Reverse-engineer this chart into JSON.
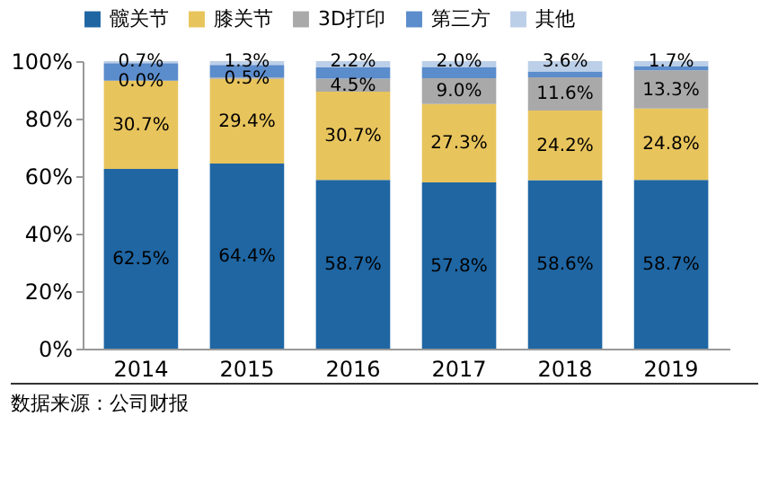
{
  "chart_data": {
    "type": "bar",
    "stacked": true,
    "categories": [
      "2014",
      "2015",
      "2016",
      "2017",
      "2018",
      "2019"
    ],
    "series": [
      {
        "name": "髋关节",
        "color": "#1f66a3",
        "values": [
          62.5,
          64.4,
          58.7,
          57.8,
          58.6,
          58.7
        ],
        "value_labels": [
          "62.5%",
          "64.4%",
          "58.7%",
          "57.8%",
          "58.6%",
          "58.7%"
        ]
      },
      {
        "name": "膝关节",
        "color": "#e8c45c",
        "values": [
          30.7,
          29.4,
          30.7,
          27.3,
          24.2,
          24.8
        ],
        "value_labels": [
          "30.7%",
          "29.4%",
          "30.7%",
          "27.3%",
          "24.2%",
          "24.8%"
        ]
      },
      {
        "name": "3D打印",
        "color": "#a9a9a9",
        "values": [
          0.0,
          0.5,
          4.5,
          9.0,
          11.6,
          13.3
        ],
        "value_labels": [
          "0.0%",
          "0.5%",
          "4.5%",
          "9.0%",
          "11.6%",
          "13.3%"
        ]
      },
      {
        "name": "第三方",
        "color": "#5b8ccb",
        "values": [
          6.1,
          4.4,
          3.9,
          3.9,
          2.0,
          1.5
        ],
        "value_labels": [
          null,
          null,
          null,
          null,
          null,
          null
        ]
      },
      {
        "name": "其他",
        "color": "#bccfe8",
        "values": [
          0.7,
          1.3,
          2.2,
          2.0,
          3.6,
          1.7
        ],
        "value_labels": [
          "0.7%",
          "1.3%",
          "2.2%",
          "2.0%",
          "3.6%",
          "1.7%"
        ]
      }
    ],
    "ylim": [
      0,
      100
    ],
    "yticks": [
      {
        "value": 0,
        "label": "0%"
      },
      {
        "value": 20,
        "label": "20%"
      },
      {
        "value": 40,
        "label": "40%"
      },
      {
        "value": 60,
        "label": "60%"
      },
      {
        "value": 80,
        "label": "80%"
      },
      {
        "value": 100,
        "label": "100%"
      }
    ],
    "legend": "top",
    "grid": false,
    "annotations": [
      "数据来源：公司财报"
    ]
  }
}
